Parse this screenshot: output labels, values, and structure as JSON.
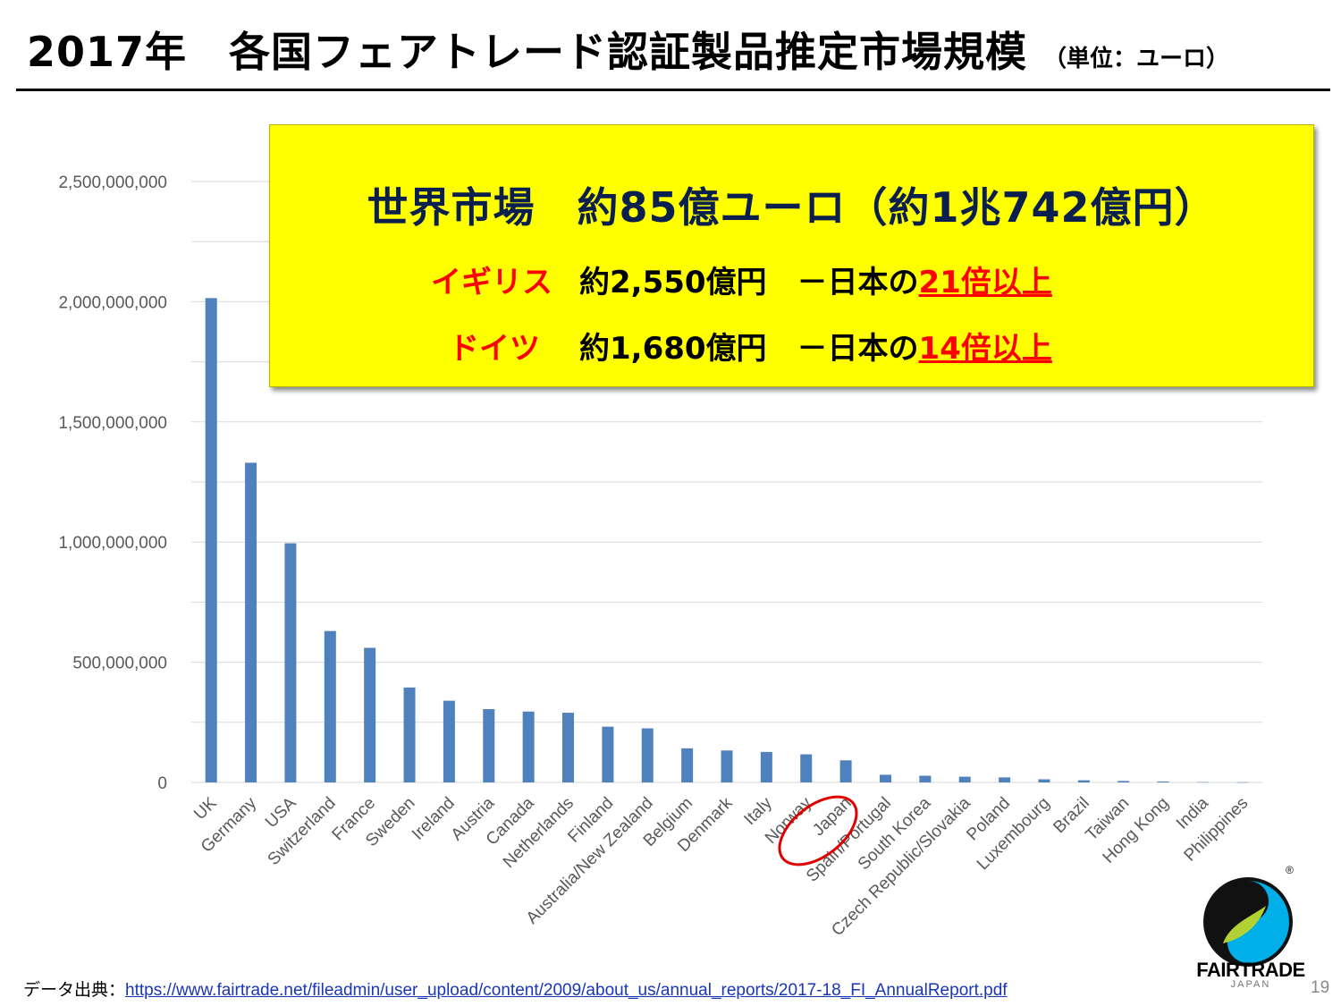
{
  "title": {
    "main": "2017年　各国フェアトレード認証製品推定市場規模",
    "unit": "（単位：ユーロ）"
  },
  "callout": {
    "headline": "世界市場　約85億ユーロ（約1兆742億円）",
    "rows": [
      {
        "country": "イギリス",
        "value": "約2,550億円　－日本の",
        "multiple": "21倍以上"
      },
      {
        "country": "ドイツ",
        "value": "約1,680億円　－日本の",
        "multiple": "14倍以上"
      }
    ]
  },
  "chart_data": {
    "type": "bar",
    "categories": [
      "UK",
      "Germany",
      "USA",
      "Switzerland",
      "France",
      "Sweden",
      "Ireland",
      "Austria",
      "Canada",
      "Netherlands",
      "Finland",
      "Australia/New Zealand",
      "Belgium",
      "Denmark",
      "Italy",
      "Norway",
      "Japan",
      "Spain/Portugal",
      "South Korea",
      "Czech Republic/Slovakia",
      "Poland",
      "Luxembourg",
      "Brazil",
      "Taiwan",
      "Hong Kong",
      "India",
      "Philippines"
    ],
    "values": [
      2015000000,
      1330000000,
      995000000,
      630000000,
      560000000,
      395000000,
      340000000,
      305000000,
      295000000,
      290000000,
      232000000,
      225000000,
      142000000,
      133000000,
      127000000,
      117000000,
      92000000,
      32000000,
      28000000,
      24000000,
      21000000,
      13000000,
      9000000,
      6000000,
      4000000,
      1500000,
      800000
    ],
    "ylim": [
      0,
      2500000000
    ],
    "yticks": [
      0,
      500000000,
      1000000000,
      1500000000,
      2000000000,
      2500000000
    ],
    "ytick_labels": [
      "0",
      "500,000,000",
      "1,000,000,000",
      "1,500,000,000",
      "2,000,000,000",
      "2,500,000,000"
    ],
    "grid": true,
    "bar_color": "#4f81bd",
    "highlighted_category": "Japan",
    "highlight_color": "#e00000"
  },
  "source": {
    "label": "データ出典：",
    "url": "https://www.fairtrade.net/fileadmin/user_upload/content/2009/about_us/annual_reports/2017-18_FI_AnnualReport.pdf"
  },
  "page_number": "19",
  "logo": {
    "name": "FAIRTRADE",
    "sub": "JAPAN",
    "mark": "®"
  }
}
